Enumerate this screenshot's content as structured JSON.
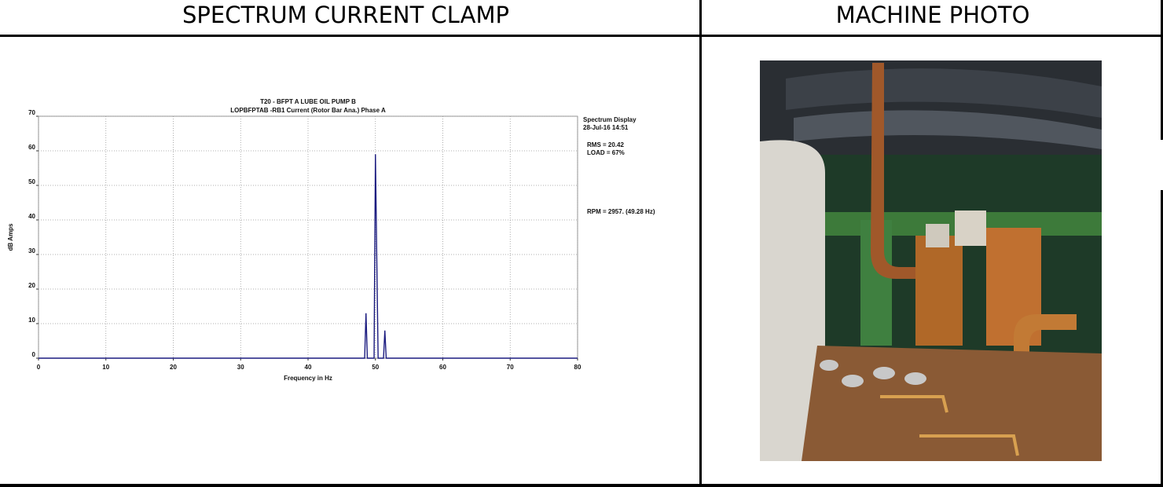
{
  "headers": [
    "SPECTRUM CURRENT CLAMP",
    "MACHINE PHOTO"
  ],
  "chart_data": {
    "type": "line",
    "title": "T20  - BFPT A LUBE OIL PUMP B",
    "subtitle": "LOPBFPTAB -RB1   Current (Rotor Bar Ana.) Phase A",
    "x_label": "Frequency in Hz",
    "y_label": "dB Amps",
    "annotations": [
      "Spectrum Display",
      "28-Jul-16  14:51",
      "RMS  = 20.42",
      "LOAD =   67%",
      "RPM = 2957. (49.28 Hz)"
    ],
    "x": [
      0,
      48.4,
      48.6,
      48.8,
      49.8,
      50.0,
      50.2,
      50.4,
      51.2,
      51.4,
      51.6,
      80
    ],
    "values": [
      0,
      0,
      13,
      0,
      0,
      59,
      29,
      0,
      0,
      8,
      0,
      0
    ],
    "color": "#1c1c80",
    "xlim": [
      0,
      80
    ],
    "ylim": [
      0,
      70
    ],
    "xticks": [
      0,
      10,
      20,
      30,
      40,
      50,
      60,
      70,
      80
    ],
    "yticks": [
      0,
      10,
      20,
      30,
      40,
      50,
      60,
      70
    ],
    "grid": true
  }
}
